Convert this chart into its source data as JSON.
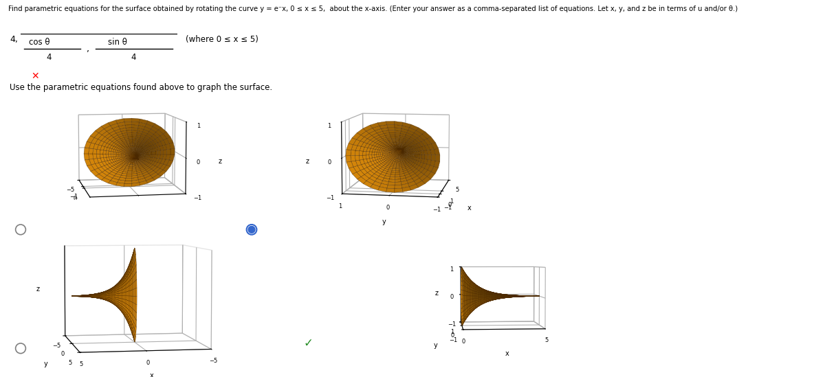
{
  "title_text": "Find parametric equations for the surface obtained by rotating the curve y = e⁻x, 0 ≤ x ≤ 5,  about the x-axis. (Enter your answer as a comma-separated list of equations. Let x, y, and z be in terms of u and/or θ.)",
  "answer_label": "4,",
  "answer_eq1_num": "cos θ",
  "answer_eq2_num": "sin θ",
  "answer_denom": "4",
  "answer_where": "(where 0 ≤ x ≤ 5)",
  "use_text": "Use the parametric equations found above to graph the surface.",
  "surface_color": "#D4860A",
  "edge_color": "#4a2800",
  "background": "#ffffff",
  "x_range": [
    0,
    5
  ],
  "theta_range": [
    0,
    6.2832
  ],
  "u_steps": 50,
  "theta_steps": 36,
  "plot1_elev": 8,
  "plot1_azim": 170,
  "plot2_elev": 8,
  "plot2_azim": -170,
  "plot3_elev": 5,
  "plot3_azim": 80,
  "plot4_elev": 3,
  "plot4_azim": -95
}
